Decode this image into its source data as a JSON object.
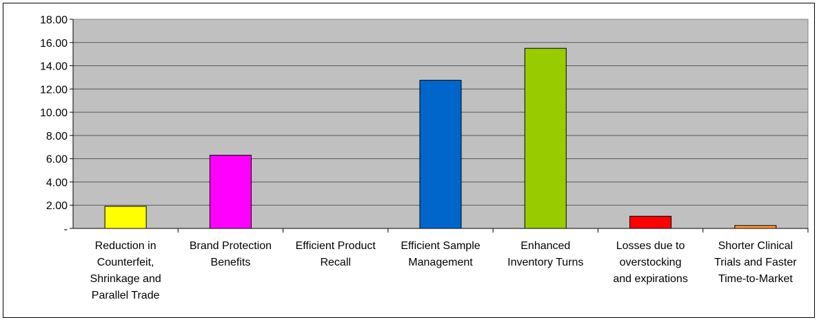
{
  "chart_data": {
    "type": "bar",
    "categories": [
      [
        "Reduction in",
        "Counterfeit,",
        "Shrinkage and",
        "Parallel Trade"
      ],
      [
        "Brand Protection",
        "Benefits"
      ],
      [
        "Efficient Product",
        "Recall"
      ],
      [
        "Efficient Sample",
        "Management"
      ],
      [
        "Enhanced",
        "Inventory Turns"
      ],
      [
        "Losses due to",
        "overstocking",
        "and expirations"
      ],
      [
        "Shorter Clinical",
        "Trials and Faster",
        "Time-to-Market"
      ]
    ],
    "values": [
      1.9,
      6.3,
      0.0,
      12.75,
      15.5,
      1.05,
      0.25
    ],
    "colors": [
      "#ffff00",
      "#ff00ff",
      "#c0c0c0",
      "#0066cc",
      "#99cc00",
      "#ff0000",
      "#ff9933"
    ],
    "ylim": [
      0,
      18
    ],
    "yticks": [
      0,
      2,
      4,
      6,
      8,
      10,
      12,
      14,
      16,
      18
    ],
    "ytick_labels": [
      "-",
      "2.00",
      "4.00",
      "6.00",
      "8.00",
      "10.00",
      "12.00",
      "14.00",
      "16.00",
      "18.00"
    ],
    "plot_background": "#c0c0c0",
    "grid": true,
    "title": "",
    "xlabel": "",
    "ylabel": ""
  }
}
